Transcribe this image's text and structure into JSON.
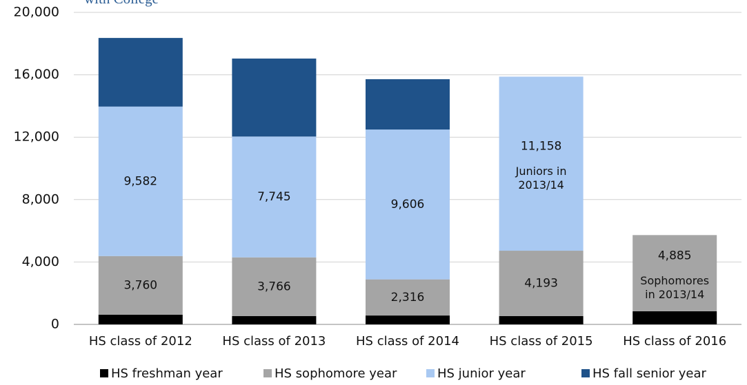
{
  "chart_data": {
    "type": "stacked_bar",
    "title": "with College",
    "categories": [
      "HS class of 2012",
      "HS class of 2013",
      "HS class of 2014",
      "HS class of 2015",
      "HS class of 2016"
    ],
    "series": [
      {
        "name": "HS freshman year",
        "color": "#000000",
        "values": [
          620,
          530,
          570,
          530,
          840
        ]
      },
      {
        "name": "HS sophomore year",
        "color": "#a5a5a5",
        "values": [
          3760,
          3766,
          2316,
          4193,
          4885
        ],
        "value_labels": [
          "3,760",
          "3,766",
          "2,316",
          "4,193",
          "4,885"
        ]
      },
      {
        "name": "HS junior year",
        "color": "#a9c9f2",
        "values": [
          9582,
          7745,
          9606,
          11158,
          null
        ],
        "value_labels": [
          "9,582",
          "7,745",
          "9,606",
          "11,158",
          null
        ]
      },
      {
        "name": "HS fall senior year",
        "color": "#1f5289",
        "values": [
          4400,
          5000,
          3225,
          null,
          null
        ]
      }
    ],
    "annotations": [
      [
        "Juniors in",
        "2013/14"
      ],
      [
        "Sophomores",
        "in 2013/14"
      ]
    ],
    "ylim": [
      0,
      20000
    ],
    "yticks": [
      0,
      {
        "value": 4000,
        "label": "4,000"
      },
      {
        "value": 8000,
        "label": "8,000"
      },
      {
        "value": 12000,
        "label": "12,000"
      },
      {
        "value": 16000,
        "label": "16,000"
      },
      {
        "value": 20000,
        "label": "20,000"
      }
    ],
    "grid": true,
    "legend": "bottom"
  }
}
